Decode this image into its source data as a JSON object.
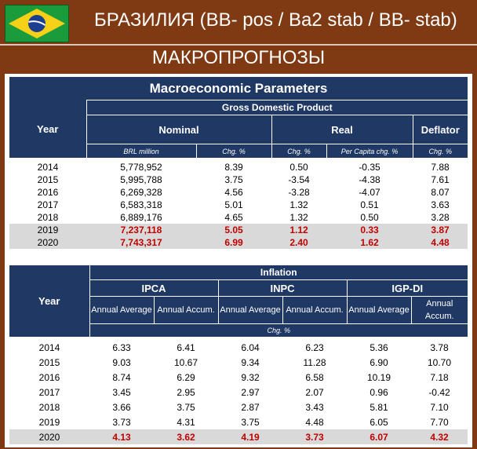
{
  "header": {
    "title": "БРАЗИЛИЯ (BB- pos / Ba2 stab / BB- stab)",
    "subtitle": "МАКРОПРОГНОЗЫ",
    "flag_icon": "brazil-flag-icon"
  },
  "gdp_table": {
    "title": "Macroeconomic Parameters",
    "group_header": "Gross Domestic Product",
    "year_label": "Year",
    "col_groups": [
      "Nominal",
      "Real",
      "Deflator"
    ],
    "units": [
      "BRL million",
      "Chg. %",
      "Chg. %",
      "Per Capita chg. %",
      "Chg. %"
    ],
    "rows": [
      {
        "year": "2014",
        "v": [
          "5,778,952",
          "8.39",
          "0.50",
          "-0.35",
          "7.88"
        ]
      },
      {
        "year": "2015",
        "v": [
          "5,995,788",
          "3.75",
          "-3.54",
          "-4.38",
          "7.61"
        ]
      },
      {
        "year": "2016",
        "v": [
          "6,269,328",
          "4.56",
          "-3.28",
          "-4.07",
          "8.07"
        ]
      },
      {
        "year": "2017",
        "v": [
          "6,583,318",
          "5.01",
          "1.32",
          "0.51",
          "3.63"
        ]
      },
      {
        "year": "2018",
        "v": [
          "6,889,176",
          "4.65",
          "1.32",
          "0.50",
          "3.28"
        ]
      },
      {
        "year": "2019",
        "v": [
          "7,237,118",
          "5.05",
          "1.12",
          "0.33",
          "3.87"
        ]
      },
      {
        "year": "2020",
        "v": [
          "7,743,317",
          "6.99",
          "2.40",
          "1.62",
          "4.48"
        ]
      }
    ]
  },
  "inflation_table": {
    "title": "Inflation",
    "year_label": "Year",
    "col_groups": [
      "IPCA",
      "INPC",
      "IGP-DI"
    ],
    "col_a": "Annual Average",
    "col_b": "Annual Accum.",
    "unit": "Chg. %",
    "rows": [
      {
        "year": "2014",
        "v": [
          "6.33",
          "6.41",
          "6.04",
          "6.23",
          "5.36",
          "3.78"
        ]
      },
      {
        "year": "2015",
        "v": [
          "9.03",
          "10.67",
          "9.34",
          "11.28",
          "6.90",
          "10.70"
        ]
      },
      {
        "year": "2016",
        "v": [
          "8.74",
          "6.29",
          "9.32",
          "6.58",
          "10.19",
          "7.18"
        ]
      },
      {
        "year": "2017",
        "v": [
          "3.45",
          "2.95",
          "2.97",
          "2.07",
          "0.96",
          "-0.42"
        ]
      },
      {
        "year": "2018",
        "v": [
          "3.66",
          "3.75",
          "2.87",
          "3.43",
          "5.81",
          "7.10"
        ]
      },
      {
        "year": "2019",
        "v": [
          "3.73",
          "4.31",
          "3.75",
          "4.48",
          "6.05",
          "7.70"
        ]
      },
      {
        "year": "2020",
        "v": [
          "4.13",
          "3.62",
          "4.19",
          "3.73",
          "6.07",
          "4.32"
        ]
      }
    ]
  }
}
